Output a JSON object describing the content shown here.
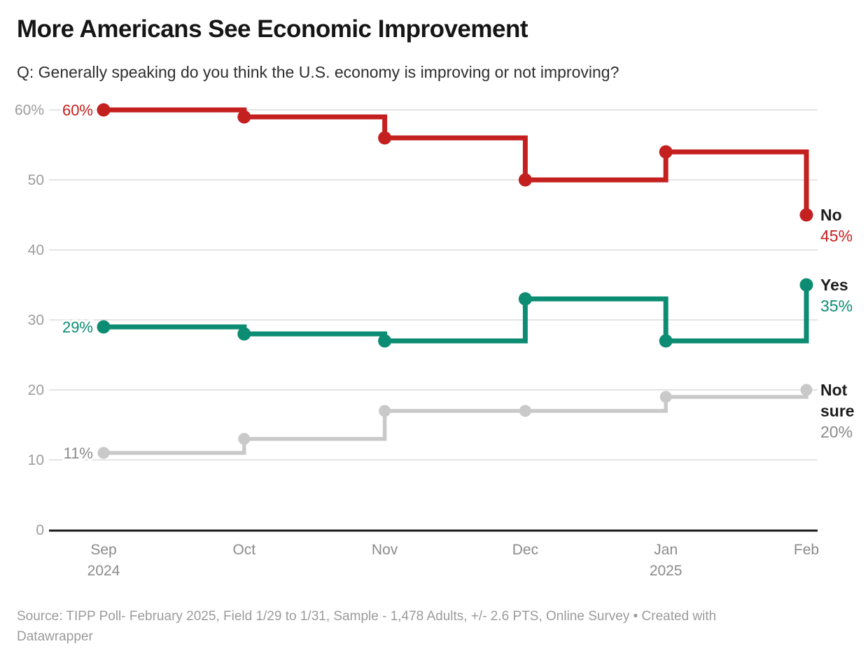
{
  "header": {
    "title": "More Americans See Economic Improvement",
    "subtitle": "Q: Generally speaking do you think the U.S. economy is improving or not improving?"
  },
  "footer": {
    "line1": "Source: TIPP Poll- February 2025, Field 1/29 to 1/31, Sample - 1,478 Adults, +/- 2.6 PTS, Online Survey • Created with",
    "line2": "Datawrapper"
  },
  "colors": {
    "grid": "#e4e4e4",
    "axis": "#1a1a1a",
    "tick_label": "#9c9c9c",
    "month_label": "#8a8a8a",
    "end_label_name": "#1d1d1d",
    "halo": "#ffffff"
  },
  "chart_data": {
    "type": "line",
    "step": true,
    "title": "More Americans See Economic Improvement",
    "subtitle": "Q: Generally speaking do you think the U.S. economy is improving or not improving?",
    "x": [
      "Sep",
      "Oct",
      "Nov",
      "Dec",
      "Jan",
      "Feb"
    ],
    "year_labels": [
      {
        "index": 0,
        "text": "2024"
      },
      {
        "index": 4,
        "text": "2025"
      }
    ],
    "ylim": [
      0,
      60
    ],
    "grid": true,
    "legend_position": "right-end-labels",
    "yticks": [
      {
        "value": 60,
        "label": "60%"
      },
      {
        "value": 50,
        "label": "50"
      },
      {
        "value": 40,
        "label": "40"
      },
      {
        "value": 30,
        "label": "30"
      },
      {
        "value": 20,
        "label": "20"
      },
      {
        "value": 10,
        "label": "10"
      },
      {
        "value": 0,
        "label": "0"
      }
    ],
    "series": [
      {
        "id": "no",
        "name": "No",
        "color": "#c4201f",
        "line_width": 7,
        "dot_radius": 9.5,
        "values": [
          60,
          59,
          56,
          50,
          54,
          45
        ],
        "start_label": "60%",
        "end_label": {
          "name_lines": [
            "No"
          ],
          "value": "45%"
        }
      },
      {
        "id": "yes",
        "name": "Yes",
        "color": "#0c8c73",
        "line_width": 7,
        "dot_radius": 9.5,
        "values": [
          29,
          28,
          27,
          33,
          27,
          35
        ],
        "start_label": "29%",
        "end_label": {
          "name_lines": [
            "Yes"
          ],
          "value": "35%"
        }
      },
      {
        "id": "not-sure",
        "name": "Not sure",
        "color": "#c9c9c9",
        "value_label_color": "#8a8a8a",
        "line_width": 5.5,
        "dot_radius": 8.5,
        "values": [
          11,
          13,
          17,
          17,
          19,
          20
        ],
        "start_label": "11%",
        "end_label": {
          "name_lines": [
            "Not",
            "sure"
          ],
          "value": "20%"
        }
      }
    ]
  }
}
